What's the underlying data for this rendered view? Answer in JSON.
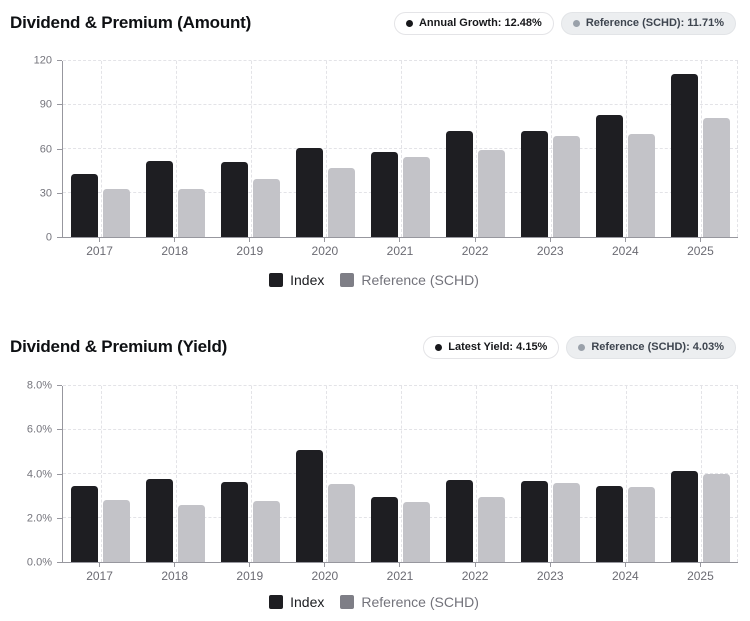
{
  "chart_data": [
    {
      "type": "bar",
      "title": "Dividend & Premium (Amount)",
      "badges": [
        {
          "text": "Annual Growth: 12.48%"
        },
        {
          "text": "Reference (SCHD): 11.71%"
        }
      ],
      "categories": [
        "2017",
        "2018",
        "2019",
        "2020",
        "2021",
        "2022",
        "2023",
        "2024",
        "2025"
      ],
      "series": [
        {
          "name": "Index",
          "color": "#1e1e22",
          "legend_color": "#1e1e22",
          "values": [
            43,
            51.5,
            51,
            61,
            58,
            72,
            72.5,
            83,
            111
          ]
        },
        {
          "name": "Reference (SCHD)",
          "color": "#c3c3c8",
          "legend_color": "#7e7e86",
          "values": [
            33,
            33,
            39.5,
            47,
            54.5,
            59,
            69,
            70.5,
            81
          ]
        }
      ],
      "xlabel": "",
      "ylabel": "",
      "ylim": [
        0,
        120
      ],
      "yticks": [
        0,
        30,
        60,
        90,
        120
      ],
      "ytick_labels": [
        "0",
        "30",
        "60",
        "90",
        "120"
      ],
      "grid": true,
      "legend_position": "bottom"
    },
    {
      "type": "bar",
      "title": "Dividend & Premium (Yield)",
      "badges": [
        {
          "text": "Latest Yield: 4.15%"
        },
        {
          "text": "Reference (SCHD): 4.03%"
        }
      ],
      "categories": [
        "2017",
        "2018",
        "2019",
        "2020",
        "2021",
        "2022",
        "2023",
        "2024",
        "2025"
      ],
      "series": [
        {
          "name": "Index",
          "color": "#1e1e22",
          "legend_color": "#1e1e22",
          "values": [
            3.45,
            3.8,
            3.65,
            5.1,
            2.95,
            3.75,
            3.7,
            3.45,
            4.15
          ]
        },
        {
          "name": "Reference (SCHD)",
          "color": "#c3c3c8",
          "legend_color": "#7e7e86",
          "values": [
            2.85,
            2.6,
            2.8,
            3.55,
            2.75,
            2.95,
            3.6,
            3.4,
            4.03
          ]
        }
      ],
      "xlabel": "",
      "ylabel": "",
      "ylim": [
        0,
        8
      ],
      "yticks": [
        0,
        2,
        4,
        6,
        8
      ],
      "ytick_labels": [
        "0.0%",
        "2.0%",
        "4.0%",
        "6.0%",
        "8.0%"
      ],
      "grid": true,
      "legend_position": "bottom"
    }
  ]
}
